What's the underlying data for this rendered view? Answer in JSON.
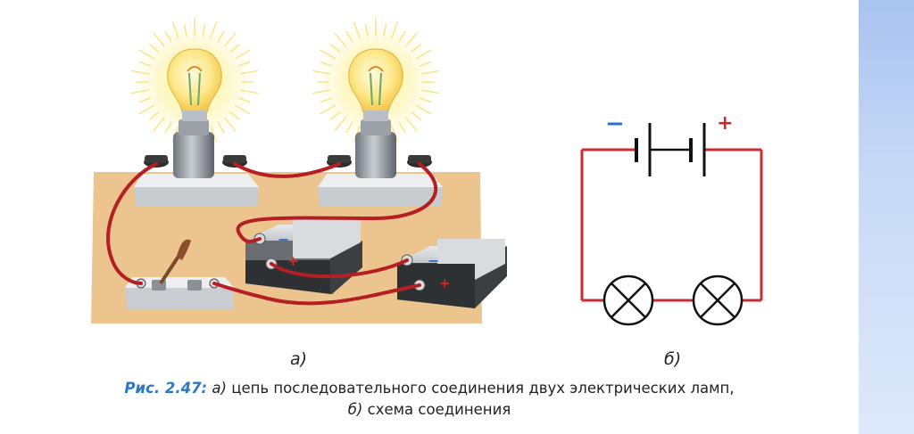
{
  "figure": {
    "label_a": "а)",
    "label_b": "б)",
    "caption": {
      "number": "Рис. 2.47:",
      "part_a_marker": "а)",
      "part_a_text": "цепь последовательного соединения двух электрических ламп,",
      "part_b_marker": "б)",
      "part_b_text": "схема соединения"
    }
  },
  "schematic": {
    "minus_sign": "−",
    "plus_sign": "+",
    "wire_color": "#cc2b30",
    "minus_color": "#2f6fc4",
    "plus_color": "#d0262a"
  },
  "illustration": {
    "battery_minus": "−",
    "battery_plus": "+"
  },
  "colors": {
    "caption_accent": "#2f77c2",
    "board": "#ecc48e",
    "wire": "#b51f23"
  }
}
